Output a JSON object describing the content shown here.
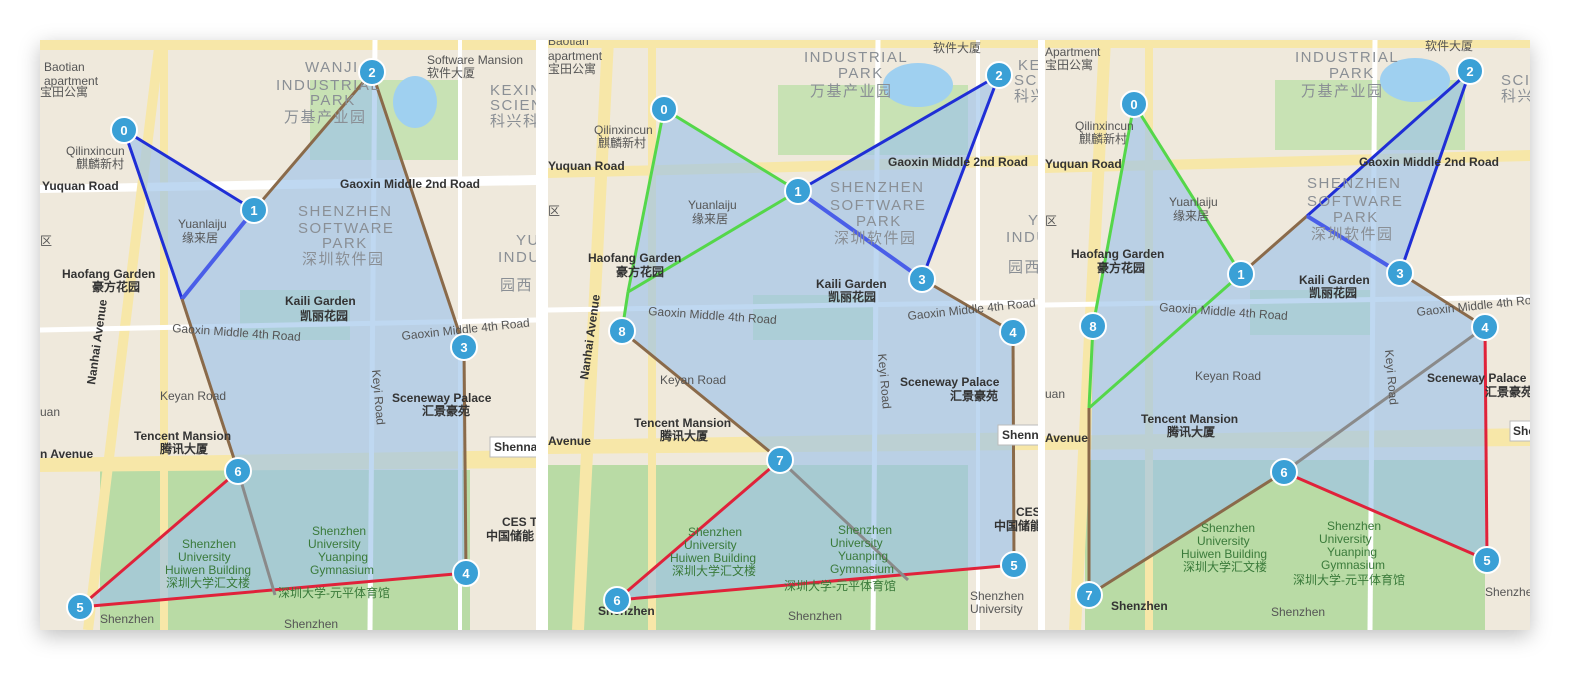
{
  "colors": {
    "land": "#efe9dc",
    "park": "#b9dba5",
    "water": "#9fd0f0",
    "road_major": "#f7e7a8",
    "road_minor": "#ffffff",
    "polygon_fill": "#9cc3ea",
    "node": "#3aa0d6",
    "edge_blue": "#1f2ed6",
    "edge_lightblue": "#4a5ee8",
    "edge_brown": "#8a6a4a",
    "edge_gray": "#8a8a8a",
    "edge_red": "#e0223a",
    "edge_green": "#55d74a"
  },
  "map_labels": {
    "baotian": "Baotian",
    "apartment": "Apartment",
    "apartment_lower": "apartment",
    "baotian_cn": "宝田公寓",
    "wanji_1": "WANJI",
    "wanji_industrial": "INDUSTRIAL",
    "wanji_park": "PARK",
    "wanji_cn": "万基产业园",
    "software_mansion": "Software Mansion",
    "software_mansion_cn": "软件大厦",
    "kexing": "KEXING",
    "science": "SCIENCE",
    "kexing_cn": "科兴科",
    "qilinxincun": "Qilinxincun",
    "qilinxincun_cn": "麒麟新村",
    "yuquan_road": "Yuquan Road",
    "gaoxin_middle_2nd": "Gaoxin Middle 2nd Road",
    "shenzhen": "SHENZHEN",
    "software": "SOFTWARE",
    "park": "PARK",
    "software_park_cn": "深圳软件园",
    "yuanlaiju": "Yuanlaiju",
    "yuanlaiju_cn": "缘来居",
    "haofang_garden": "Haofang Garden",
    "haofang_cn": "豪方花园",
    "kaili_garden": "Kaili Garden",
    "kaili_cn": "凯丽花园",
    "gaoxin_middle_4th": "Gaoxin Middle 4th Road",
    "nanhai_avenue": "Nanhai Avenue",
    "keyan_road": "Keyan Road",
    "keyi_road": "Keyi Road",
    "sceneway_palace": "Sceneway Palace",
    "sceneway_cn": "汇景豪苑",
    "tencent_mansion": "Tencent Mansion",
    "tencent_cn": "腾讯大厦",
    "avenue": "Avenue",
    "shennan": "Shennan",
    "shenzhen_university": "Shenzhen",
    "university": "University",
    "huiwen_building": "Huiwen Building",
    "huiwen_cn": "深圳大学汇文楼",
    "yuanping": "Yuanping",
    "gymnasium": "Gymnasium",
    "gym_cn": "深圳大学-元平体育馆",
    "ces": "CES T",
    "ces_cn": "中国储能",
    "shenzhen_bottom": "Shenzhen",
    "district_cn": "区",
    "yu": "YU",
    "indu": "INDU",
    "yuan_cn": "园西",
    "uan": "uan",
    "n_avenue": "n Avenue"
  },
  "panels": [
    {
      "id": "panel-1",
      "nodes": [
        "0",
        "1",
        "2",
        "3",
        "4",
        "5",
        "6"
      ]
    },
    {
      "id": "panel-2",
      "nodes": [
        "0",
        "1",
        "2",
        "3",
        "4",
        "5",
        "6",
        "7",
        "8"
      ]
    },
    {
      "id": "panel-3",
      "nodes": [
        "0",
        "1",
        "2",
        "3",
        "4",
        "5",
        "6",
        "7",
        "8"
      ]
    }
  ]
}
